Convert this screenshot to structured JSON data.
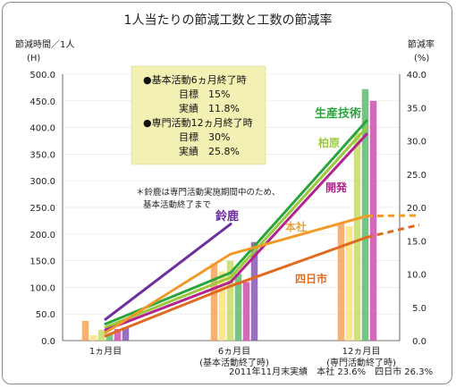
{
  "chart_data": {
    "type": "bar",
    "title": "1人当たりの節減工数と工数の節減率",
    "ylabel_left": "節減時間／1人",
    "ylabel_left_unit": "(H)",
    "ylabel_right": "節減率",
    "ylabel_right_unit": "(%)",
    "ylim_left": [
      0,
      500
    ],
    "ylim_right": [
      0,
      40
    ],
    "yticks_left": [
      "0.0",
      "50.0",
      "100.0",
      "150.0",
      "200.0",
      "250.0",
      "300.0",
      "350.0",
      "400.0",
      "450.0",
      "500.0"
    ],
    "yticks_right": [
      "0.0",
      "5.0",
      "10.0",
      "15.0",
      "20.0",
      "25.0",
      "30.0",
      "35.0",
      "40.0"
    ],
    "categories": [
      "1ヵ月目",
      "6ヵ月目",
      "12ヵ月目"
    ],
    "category_sublabels": [
      "",
      "(基本活動終了時)",
      "(専門活動終了時)"
    ],
    "bar_series": [
      {
        "name": "本社",
        "color": "#f2a35a",
        "values": [
          37,
          145,
          220
        ]
      },
      {
        "name": "四日市",
        "color": "#fbe27a",
        "values": [
          10,
          130,
          215
        ]
      },
      {
        "name": "柏原",
        "color": "#c5db68",
        "values": [
          20,
          150,
          390
        ]
      },
      {
        "name": "生産技術",
        "color": "#5dbb70",
        "values": [
          12,
          125,
          472
        ]
      },
      {
        "name": "開発",
        "color": "#cc4fb0",
        "values": [
          22,
          110,
          450
        ]
      },
      {
        "name": "鈴鹿",
        "color": "#8a55b8",
        "values": [
          25,
          185,
          null
        ]
      }
    ],
    "line_series": [
      {
        "name": "生産技術",
        "color": "#2aa53c",
        "values": [
          2.5,
          10.2,
          33.0
        ]
      },
      {
        "name": "柏原",
        "color": "#9cc93b",
        "values": [
          2.0,
          9.5,
          32.0
        ]
      },
      {
        "name": "開発",
        "color": "#b2258e",
        "values": [
          1.6,
          8.8,
          31.0
        ]
      },
      {
        "name": "鈴鹿",
        "color": "#6e2f9e",
        "values": [
          3.2,
          17.5,
          null
        ]
      },
      {
        "name": "本社",
        "color": "#f09a2a",
        "values": [
          1.2,
          13.0,
          18.7
        ],
        "projection": 18.8
      },
      {
        "name": "四日市",
        "color": "#e06a20",
        "values": [
          0.7,
          8.2,
          15.5
        ],
        "projection": 17.4
      }
    ],
    "line_labels": [
      {
        "name": "生産技術",
        "text": "生産技術",
        "color": "#2aa53c"
      },
      {
        "name": "柏原",
        "text": "柏原",
        "color": "#9cc93b"
      },
      {
        "name": "開発",
        "text": "開発",
        "color": "#b2258e"
      },
      {
        "name": "鈴鹿",
        "text": "鈴鹿",
        "color": "#6e2f9e"
      },
      {
        "name": "本社",
        "text": "本社",
        "color": "#e8a23a"
      },
      {
        "name": "四日市",
        "text": "四日市",
        "color": "#e06a20"
      }
    ],
    "infobox": {
      "line1": "●基本活動6ヵ月終了時",
      "line2": "目標　15%",
      "line3": "実績　11.8%",
      "line4": "●専門活動12ヵ月終了時",
      "line5": "目標　30%",
      "line6": "実績　25.8%"
    },
    "note": "＊鈴鹿は専門活動実施期間中のため、",
    "note2": "基本活動終了まで",
    "footer": "2011年11月末実績　本社 23.6%　四日市 26.3%"
  }
}
